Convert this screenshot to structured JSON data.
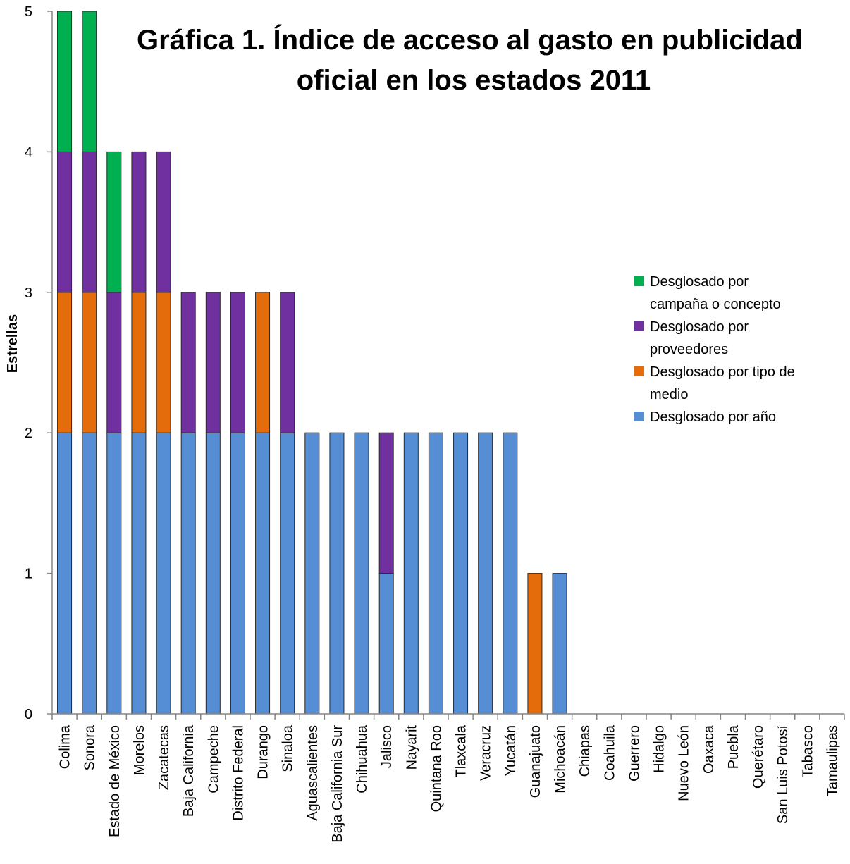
{
  "chart_data": {
    "type": "bar",
    "stacked": true,
    "title": [
      "Gráfica 1. Índice de acceso al gasto en publicidad",
      "oficial en los estados 2011"
    ],
    "xlabel": "",
    "ylabel": "Estrellas",
    "ylim": [
      0,
      5
    ],
    "yticks": [
      0,
      1,
      2,
      3,
      4,
      5
    ],
    "grid": false,
    "legend_position": "right",
    "categories": [
      "Colima",
      "Sonora",
      "Estado de México",
      "Morelos",
      "Zacatecas",
      "Baja California",
      "Campeche",
      "Distrito Federal",
      "Durango",
      "Sinaloa",
      "Aguascalientes",
      "Baja California Sur",
      "Chihuahua",
      "Jalisco",
      "Nayarit",
      "Quintana Roo",
      "Tlaxcala",
      "Veracruz",
      "Yucatán",
      "Guanajuato",
      "Michoacán",
      "Chiapas",
      "Coahuila",
      "Guerrero",
      "Hidalgo",
      "Nuevo León",
      "Oaxaca",
      "Puebla",
      "Querétaro",
      "San Luis Potosí",
      "Tabasco",
      "Tamaulipas"
    ],
    "series": [
      {
        "name": "Desglosado por año",
        "color": "#558ED5",
        "values": [
          2,
          2,
          2,
          2,
          2,
          2,
          2,
          2,
          2,
          2,
          2,
          2,
          2,
          1,
          2,
          2,
          2,
          2,
          2,
          0,
          1,
          0,
          0,
          0,
          0,
          0,
          0,
          0,
          0,
          0,
          0,
          0
        ]
      },
      {
        "name": "Desglosado por tipo de medio",
        "color": "#E46C0A",
        "values": [
          1,
          1,
          0,
          1,
          1,
          0,
          0,
          0,
          1,
          0,
          0,
          0,
          0,
          0,
          0,
          0,
          0,
          0,
          0,
          1,
          0,
          0,
          0,
          0,
          0,
          0,
          0,
          0,
          0,
          0,
          0,
          0
        ]
      },
      {
        "name": "Desglosado por proveedores",
        "color": "#7030A0",
        "values": [
          1,
          1,
          1,
          1,
          1,
          1,
          1,
          1,
          0,
          1,
          0,
          0,
          0,
          1,
          0,
          0,
          0,
          0,
          0,
          0,
          0,
          0,
          0,
          0,
          0,
          0,
          0,
          0,
          0,
          0,
          0,
          0
        ]
      },
      {
        "name": "Desglosado por campaña o concepto",
        "color": "#00B050",
        "values": [
          1,
          1,
          1,
          0,
          0,
          0,
          0,
          0,
          0,
          0,
          0,
          0,
          0,
          0,
          0,
          0,
          0,
          0,
          0,
          0,
          0,
          0,
          0,
          0,
          0,
          0,
          0,
          0,
          0,
          0,
          0,
          0
        ]
      }
    ],
    "legend": [
      {
        "series": "Desglosado por campaña o concepto",
        "lines": [
          "Desglosado por",
          "campaña o concepto"
        ],
        "color": "#00B050"
      },
      {
        "series": "Desglosado por proveedores",
        "lines": [
          "Desglosado por",
          "proveedores"
        ],
        "color": "#7030A0"
      },
      {
        "series": "Desglosado por tipo de medio",
        "lines": [
          "Desglosado por tipo de",
          "medio"
        ],
        "color": "#E46C0A"
      },
      {
        "series": "Desglosado por año",
        "lines": [
          "Desglosado por año"
        ],
        "color": "#558ED5"
      }
    ]
  }
}
